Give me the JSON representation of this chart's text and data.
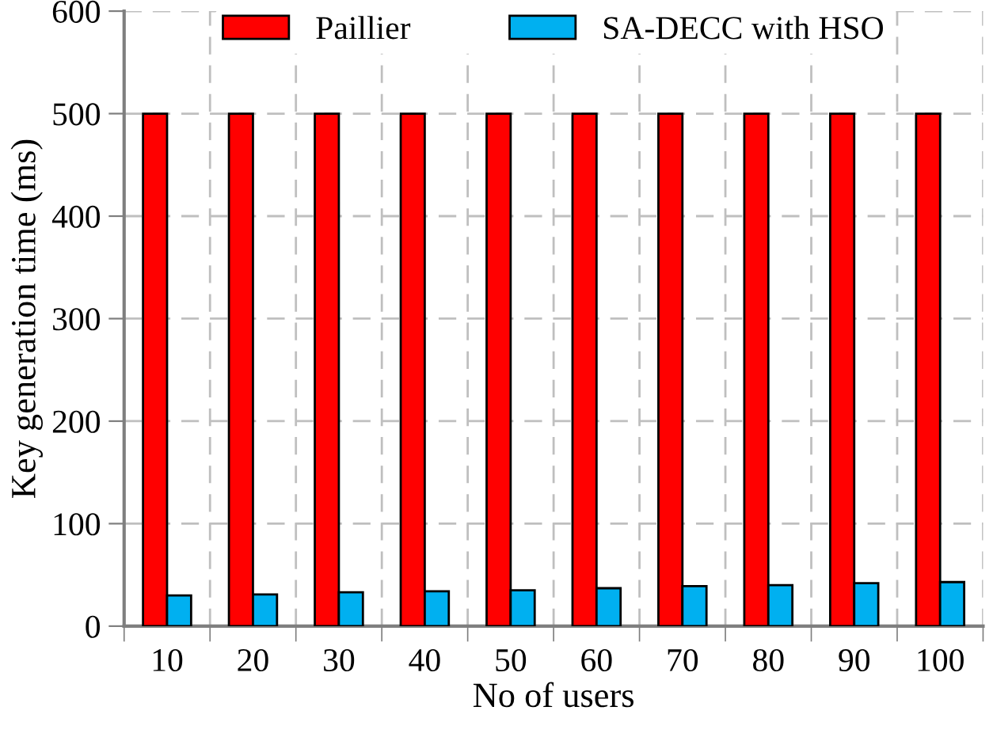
{
  "chart_data": {
    "type": "bar",
    "xlabel": "No of users",
    "ylabel": "Key generation time (ms)",
    "categories": [
      "10",
      "20",
      "30",
      "40",
      "50",
      "60",
      "70",
      "80",
      "90",
      "100"
    ],
    "series": [
      {
        "name": "Paillier",
        "color": "#ff0000",
        "values": [
          500,
          500,
          500,
          500,
          500,
          500,
          500,
          500,
          500,
          500
        ]
      },
      {
        "name": "SA-DECC with HSO",
        "color": "#00b0f0",
        "values": [
          30,
          31,
          33,
          34,
          35,
          37,
          39,
          40,
          42,
          43
        ]
      }
    ],
    "ylim": [
      0,
      600
    ],
    "yticks": [
      0,
      100,
      200,
      300,
      400,
      500,
      600
    ],
    "grid": true,
    "legend": "top"
  }
}
